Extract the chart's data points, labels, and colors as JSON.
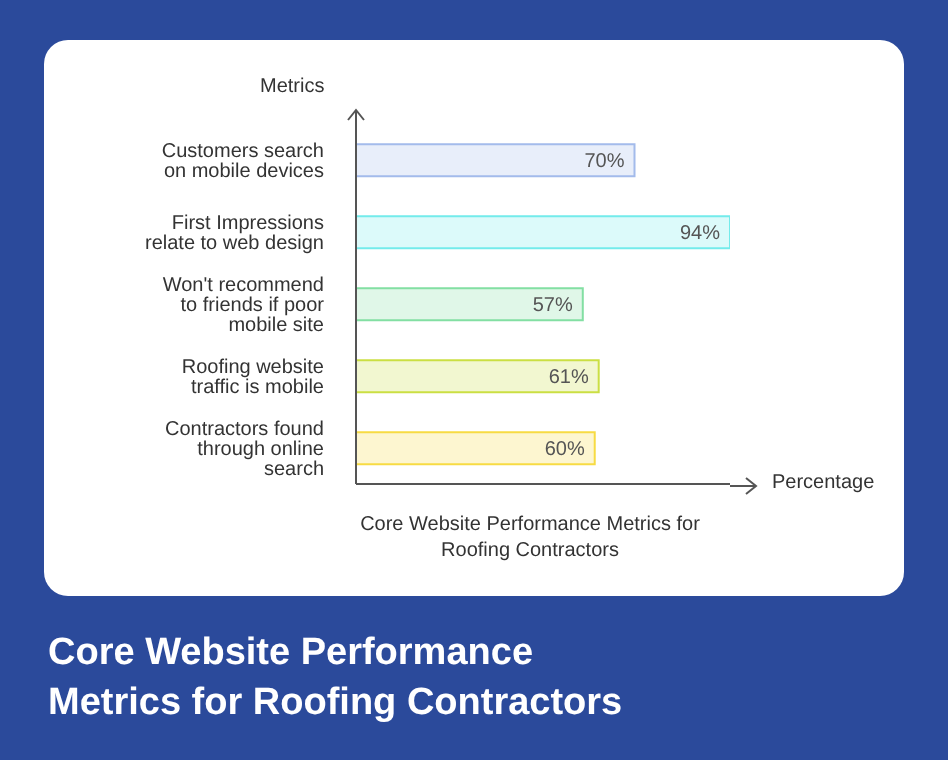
{
  "chart_data": {
    "type": "bar",
    "orientation": "horizontal",
    "title": "Core Website Performance Metrics for Roofing Contractors",
    "xlabel": "Percentage",
    "ylabel": "Metrics",
    "annotations": [
      "Core Website Performance Metrics for Roofing Contractors"
    ],
    "categories": [
      "Customers search on mobile devices",
      "First Impressions relate to web design",
      "Won't recommend to friends if poor mobile site",
      "Roofing website traffic is mobile",
      "Contractors found through online search"
    ],
    "values": [
      70,
      94,
      57,
      61,
      60
    ],
    "value_labels": [
      "70%",
      "94%",
      "57%",
      "61%",
      "60%"
    ],
    "colors": [
      "#e8eefa",
      "#dcfafa",
      "#e0f7e8",
      "#f2f7d0",
      "#fdf6d0"
    ],
    "grid": false,
    "legend": false
  }
}
